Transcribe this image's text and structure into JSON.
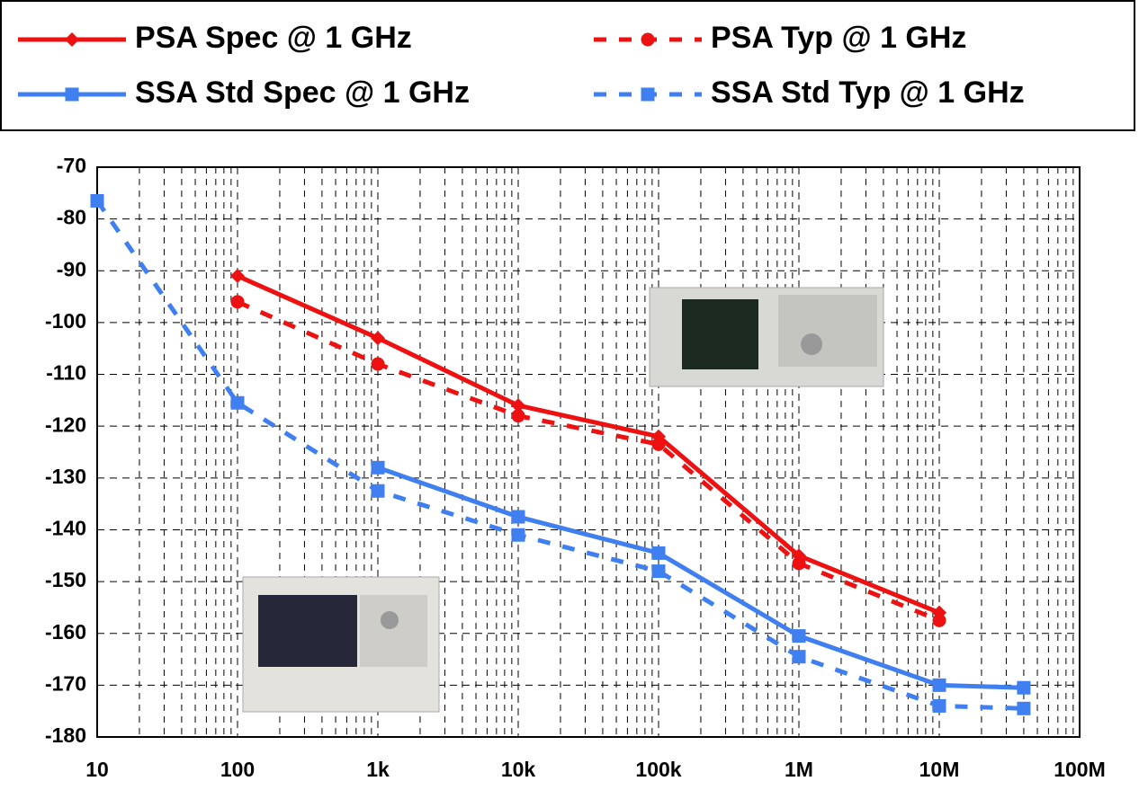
{
  "chart_data": {
    "type": "line",
    "x_log": true,
    "grid": true,
    "minor_grid": true,
    "xlim": [
      10,
      100000000
    ],
    "ylim": [
      -180,
      -70
    ],
    "xticks": [
      {
        "value": 10,
        "label": "10"
      },
      {
        "value": 100,
        "label": "100"
      },
      {
        "value": 1000,
        "label": "1k"
      },
      {
        "value": 10000,
        "label": "10k"
      },
      {
        "value": 100000,
        "label": "100k"
      },
      {
        "value": 1000000,
        "label": "1M"
      },
      {
        "value": 10000000,
        "label": "10M"
      },
      {
        "value": 100000000,
        "label": "100M"
      }
    ],
    "yticks": [
      -70,
      -80,
      -90,
      -100,
      -110,
      -120,
      -130,
      -140,
      -150,
      -160,
      -170,
      -180
    ],
    "legend": "top",
    "series": [
      {
        "name": "PSA Spec @ 1 GHz",
        "color": "#ee1111",
        "marker": "diamond",
        "dashed": false,
        "x": [
          100,
          1000,
          10000,
          100000,
          1000000,
          10000000
        ],
        "values": [
          -91,
          -103,
          -116,
          -122,
          -145,
          -156
        ]
      },
      {
        "name": "PSA Typ @ 1 GHz",
        "color": "#ee1111",
        "marker": "circle",
        "dashed": true,
        "x": [
          100,
          1000,
          10000,
          100000,
          1000000,
          10000000
        ],
        "values": [
          -96,
          -108,
          -118,
          -123.5,
          -146.5,
          -157.5
        ]
      },
      {
        "name": "SSA Std Spec @ 1 GHz",
        "color": "#3f7ff0",
        "marker": "square",
        "dashed": false,
        "x": [
          1000,
          10000,
          100000,
          1000000,
          10000000,
          40000000
        ],
        "values": [
          -128,
          -137.5,
          -144.5,
          -160.5,
          -170,
          -170.5
        ]
      },
      {
        "name": "SSA Std Typ @ 1 GHz",
        "color": "#3f7ff0",
        "marker": "square",
        "dashed": true,
        "x": [
          10,
          100,
          1000,
          10000,
          100000,
          1000000,
          10000000,
          40000000
        ],
        "values": [
          -76.5,
          -115.5,
          -132.5,
          -141,
          -148,
          -164.5,
          -174,
          -174.5
        ]
      }
    ]
  }
}
